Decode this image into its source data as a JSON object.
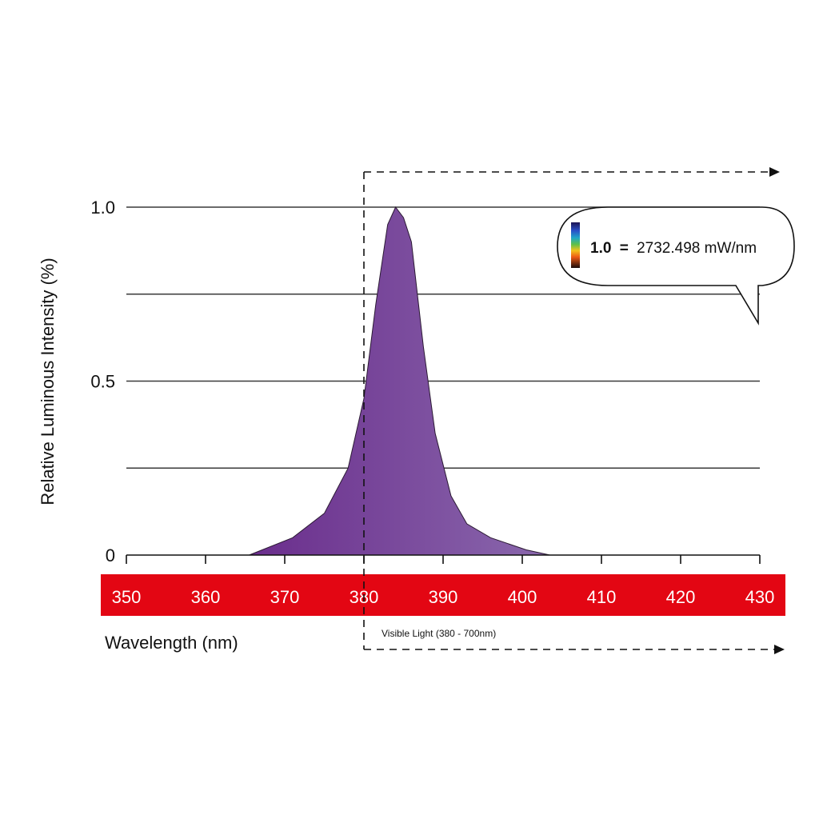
{
  "chart_data": {
    "type": "area",
    "xlabel": "Wavelength (nm)",
    "ylabel": "Relative Luminous Intensity (%)",
    "xlim": [
      350,
      430
    ],
    "ylim": [
      0,
      1.0
    ],
    "x_ticks": [
      "350",
      "360",
      "370",
      "380",
      "390",
      "400",
      "410",
      "420",
      "430"
    ],
    "y_ticks": [
      "0",
      "0.5",
      "1.0"
    ],
    "gridlines_y": [
      0.25,
      0.5,
      0.75,
      1.0
    ],
    "grid": true,
    "x": [
      365.5,
      371,
      375,
      378,
      380,
      381.5,
      383,
      384,
      385,
      386,
      387.5,
      389,
      391,
      393,
      396,
      400.5,
      403.5
    ],
    "y": [
      0.0,
      0.05,
      0.12,
      0.25,
      0.45,
      0.72,
      0.95,
      1.0,
      0.97,
      0.9,
      0.6,
      0.35,
      0.17,
      0.09,
      0.05,
      0.015,
      0.0
    ],
    "fill_colors": [
      "#6a2d8c",
      "#8a68ad"
    ],
    "band_color": "#e30613",
    "annotations": {
      "visible_light": "Visible Light (380 - 700nm)",
      "visible_light_start": 380,
      "callout_value": "1.0",
      "callout_equals": "=",
      "callout_rest": "2732.498 mW/nm"
    }
  }
}
